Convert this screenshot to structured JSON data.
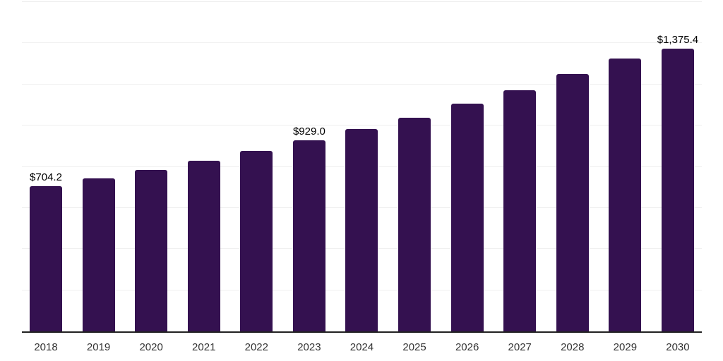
{
  "chart_data": {
    "type": "bar",
    "title": "",
    "xlabel": "",
    "ylabel": "",
    "categories": [
      "2018",
      "2019",
      "2020",
      "2021",
      "2022",
      "2023",
      "2024",
      "2025",
      "2026",
      "2027",
      "2028",
      "2029",
      "2030"
    ],
    "values": [
      704.2,
      744.6,
      784.5,
      829.7,
      877.6,
      929.0,
      982.2,
      1039.3,
      1105.3,
      1170.3,
      1250.3,
      1325.5,
      1375.4
    ],
    "data_labels": {
      "0": "$704.2",
      "5": "$929.0",
      "12": "$1,375.4"
    },
    "ylim": [
      0,
      1600
    ],
    "gridline_step": 200,
    "grid": "horizontal-only",
    "y_tick_labels_visible": false,
    "legend": "none",
    "colors": {
      "bar": "#341150",
      "axis_line": "#212121",
      "gridline": "#f0f0f0",
      "data_label": "#000000",
      "x_tick_label": "#333333",
      "background": "#ffffff"
    }
  }
}
